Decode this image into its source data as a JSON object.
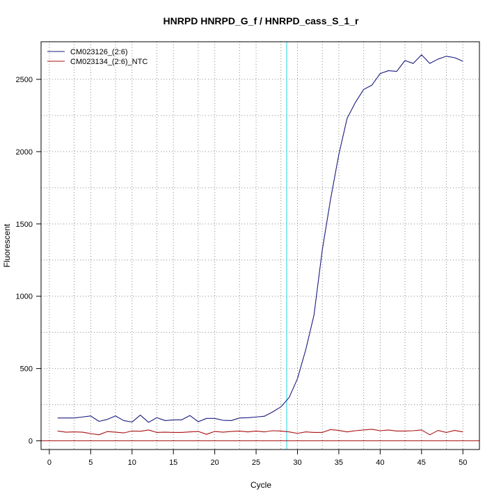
{
  "chart_data": {
    "type": "line",
    "title": "HNRPD  HNRPD_G_f / HNRPD_cass_S_1_r",
    "xlabel": "Cycle",
    "ylabel": "Fluorescent",
    "xlim": [
      -1,
      52
    ],
    "ylim": [
      -60,
      2760
    ],
    "x_ticks": [
      0,
      5,
      10,
      15,
      20,
      25,
      30,
      35,
      40,
      45,
      50
    ],
    "y_ticks": [
      0,
      500,
      1000,
      1500,
      2000,
      2500
    ],
    "x_grid": [
      0,
      5,
      10,
      15,
      20,
      25,
      30,
      35,
      40,
      45,
      50,
      3,
      8,
      13,
      18,
      23,
      28,
      33,
      38,
      43,
      48
    ],
    "y_grid": [
      0,
      250,
      500,
      750,
      1000,
      1250,
      1500,
      1750,
      2000,
      2250,
      2500
    ],
    "grid": true,
    "legend_position": "top-left",
    "threshold_cycle": 28.7,
    "baseline": 0,
    "colors": {
      "series1": "#1a1a80",
      "series2": "#aa1010",
      "threshold": "#40d8e8",
      "baseline": "#aa1010",
      "grid": "#888888",
      "axis": "#000000"
    },
    "x": [
      1,
      2,
      3,
      4,
      5,
      6,
      7,
      8,
      9,
      10,
      11,
      12,
      13,
      14,
      15,
      16,
      17,
      18,
      19,
      20,
      21,
      22,
      23,
      24,
      25,
      26,
      27,
      28,
      29,
      30,
      31,
      32,
      33,
      34,
      35,
      36,
      37,
      38,
      39,
      40,
      41,
      42,
      43,
      44,
      45,
      46,
      47,
      48,
      49,
      50
    ],
    "series": [
      {
        "name": "CM023126_(2:6)",
        "color": "#1a1a80",
        "values": [
          158,
          158,
          158,
          165,
          172,
          135,
          148,
          172,
          140,
          130,
          178,
          128,
          160,
          140,
          145,
          145,
          175,
          132,
          155,
          155,
          142,
          140,
          158,
          160,
          165,
          170,
          200,
          235,
          300,
          430,
          630,
          870,
          1320,
          1670,
          1980,
          2230,
          2340,
          2430,
          2460,
          2540,
          2560,
          2555,
          2630,
          2610,
          2670,
          2610,
          2640,
          2660,
          2650,
          2625
        ]
      },
      {
        "name": "CM023134_(2:6)_NTC",
        "color": "#aa1010",
        "values": [
          68,
          60,
          62,
          60,
          50,
          42,
          64,
          60,
          55,
          68,
          66,
          75,
          58,
          60,
          58,
          58,
          62,
          65,
          45,
          65,
          60,
          65,
          68,
          62,
          68,
          62,
          70,
          68,
          62,
          52,
          62,
          58,
          58,
          78,
          72,
          62,
          70,
          75,
          80,
          70,
          75,
          68,
          68,
          70,
          75,
          42,
          72,
          58,
          72,
          62
        ]
      }
    ]
  }
}
